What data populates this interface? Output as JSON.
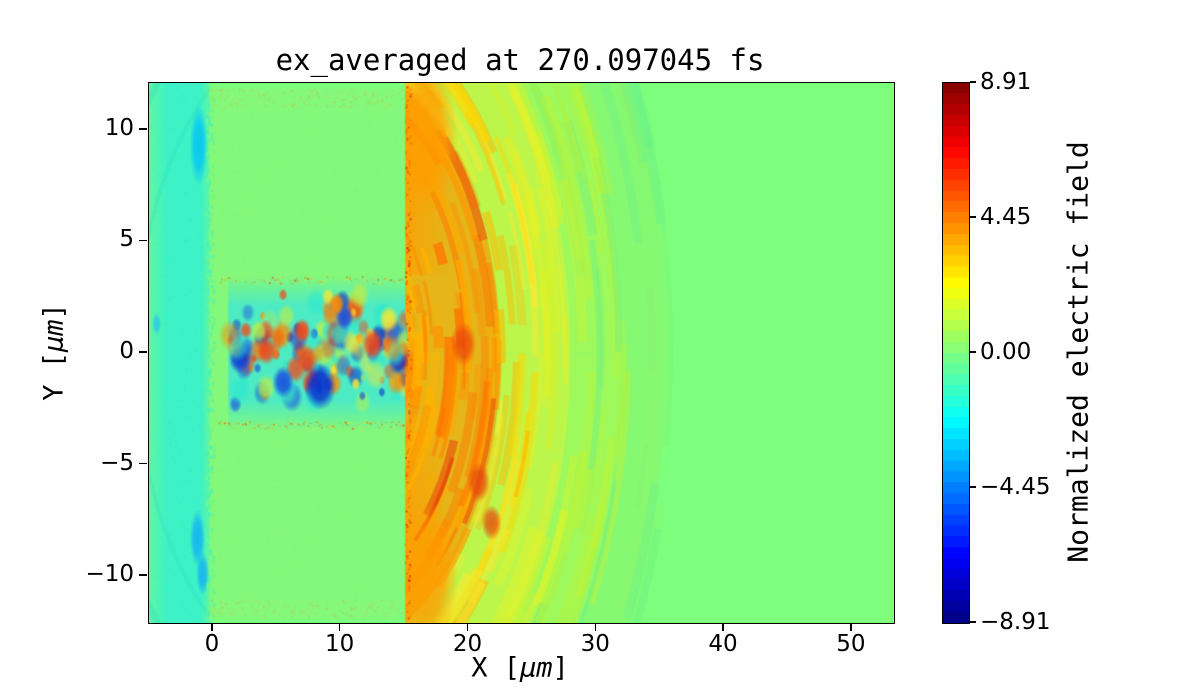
{
  "chart_data": {
    "type": "heatmap",
    "title": "ex_averaged at 270.097045 fs",
    "xlabel": {
      "prefix": "X [",
      "unit": "µm",
      "suffix": "]"
    },
    "ylabel": {
      "prefix": "Y [",
      "unit": "µm",
      "suffix": "]"
    },
    "xlim": [
      -5,
      53.3
    ],
    "ylim": [
      -12.1,
      12.1
    ],
    "xticks": [
      0,
      10,
      20,
      30,
      40,
      50
    ],
    "xtick_labels": [
      "0",
      "10",
      "20",
      "30",
      "40",
      "50"
    ],
    "yticks": [
      10,
      5,
      0,
      -5,
      -10
    ],
    "ytick_labels": [
      "10",
      "5",
      "0",
      "−5",
      "−10"
    ],
    "grid": false,
    "colorbar": {
      "label": "Normalized electric field",
      "vmin": -8.91,
      "vmax": 8.91,
      "tick_values": [
        8.91,
        4.45,
        0,
        -4.45,
        -8.91
      ],
      "tick_labels": [
        "8.91",
        "4.45",
        "0.00",
        "−4.45",
        "−8.91"
      ],
      "levels": 50,
      "colormap": "jet",
      "stops": [
        [
          0,
          "#00007f"
        ],
        [
          0.125,
          "#0000ff"
        ],
        [
          0.375,
          "#00ffff"
        ],
        [
          0.625,
          "#ffff00"
        ],
        [
          0.875,
          "#ff0000"
        ],
        [
          1,
          "#7f0000"
        ]
      ]
    },
    "field": {
      "description": "PIC-simulation averaged Ex field: vacuum strip at left (slightly negative, cyan), plasma block 0-15 um (near zero, green) with speckle, laser speckle channel |y|<3.5 um, strong outgoing circular emission arcs from plasma front at x=15 um fading by x=36 um, uniform zero field beyond",
      "background_color": "#7dfe7c",
      "vacuum_left": {
        "x": [
          -5,
          -0.25
        ],
        "color": "#3cf2c6",
        "edge_color": "#62f6a2",
        "arc_color": "#2adbc6",
        "blue_patches": [
          {
            "x": -1.1,
            "y": 9.3,
            "rx": 0.7,
            "ry": 1.8,
            "color": "#00c2f8"
          },
          {
            "x": -1.2,
            "y": -8.3,
            "rx": 0.6,
            "ry": 1.3,
            "color": "#12aef4"
          },
          {
            "x": -0.8,
            "y": -9.9,
            "rx": 0.5,
            "ry": 1.0,
            "color": "#12aef4"
          },
          {
            "x": -4.4,
            "y": 1.3,
            "rx": 0.35,
            "ry": 0.5,
            "color": "#28c8ea"
          }
        ]
      },
      "plasma_block": {
        "x": [
          -0.25,
          15.3
        ],
        "y": [
          -11.85,
          11.85
        ],
        "color": "#84f87a",
        "noise_colors": [
          "#a9ef63",
          "#6ef2a2",
          "#97f871"
        ],
        "edge_speckle_colors": [
          "#ffa23c",
          "#e8c93a",
          "#ff8a2a"
        ]
      },
      "laser_channel": {
        "x": [
          1.2,
          15.4
        ],
        "y": [
          -3.5,
          3.5
        ],
        "base_color": "#43e9d1",
        "blob_colors": {
          "red": "#f0481b",
          "orange": "#ff8a00",
          "blue": "#1a4fe0",
          "dark_blue": "#0a30cf",
          "cyan": "#2fe9cf",
          "yellow": "#ffe92e",
          "lime": "#b8f04e"
        },
        "accent_blobs": [
          {
            "x": 8.4,
            "y": -1.5,
            "r": 1.25,
            "c": "dark_blue"
          },
          {
            "x": 5.5,
            "y": -1.3,
            "r": 0.85,
            "c": "blue"
          },
          {
            "x": 10.3,
            "y": 1.6,
            "r": 0.7,
            "c": "blue"
          },
          {
            "x": 4.2,
            "y": 0.1,
            "r": 0.75,
            "c": "red"
          },
          {
            "x": 7.0,
            "y": 1.0,
            "r": 0.65,
            "c": "red"
          },
          {
            "x": 12.5,
            "y": 0.4,
            "r": 0.85,
            "c": "red"
          },
          {
            "x": 9.7,
            "y": 2.2,
            "r": 0.6,
            "c": "orange"
          }
        ]
      },
      "emission": {
        "center": [
          9,
          0
        ],
        "clip_x": 15.05,
        "max_radius": 27,
        "core_annulus": [
          6.3,
          13.5
        ],
        "core_color": "#ffa200",
        "red_streak_color": "#e8440c",
        "yellow_annulus": [
          13.5,
          19
        ],
        "yellow_color": "#f2ee22",
        "lime_annulus": [
          19,
          23
        ],
        "lime_color": "#cdf32e",
        "outer_annulus": [
          23,
          26.5
        ],
        "outer_color": "#9af05e",
        "teal_streak_color": "#62ec90",
        "rim_color": "#ff9d00",
        "rim_blobs": [
          {
            "x": 16.6,
            "y": 9.6,
            "r": 2.6
          },
          {
            "x": 16.8,
            "y": -9.9,
            "r": 2.4
          }
        ],
        "red_blobs": [
          {
            "x": 19.6,
            "y": 0.4,
            "r": 1.0
          },
          {
            "x": 20.8,
            "y": -5.8,
            "r": 0.9
          },
          {
            "x": 21.8,
            "y": -7.6,
            "r": 0.8
          }
        ]
      },
      "surface_line": {
        "x": 15.3,
        "colors": [
          "#e43b0c",
          "#ff7300",
          "#c81d04"
        ]
      },
      "shear_lines": {
        "y": [
          3.25,
          -3.25
        ],
        "x": [
          0.5,
          15.2
        ],
        "colors": [
          "#ef5510",
          "#ff9100",
          "#d9e832"
        ]
      }
    }
  }
}
